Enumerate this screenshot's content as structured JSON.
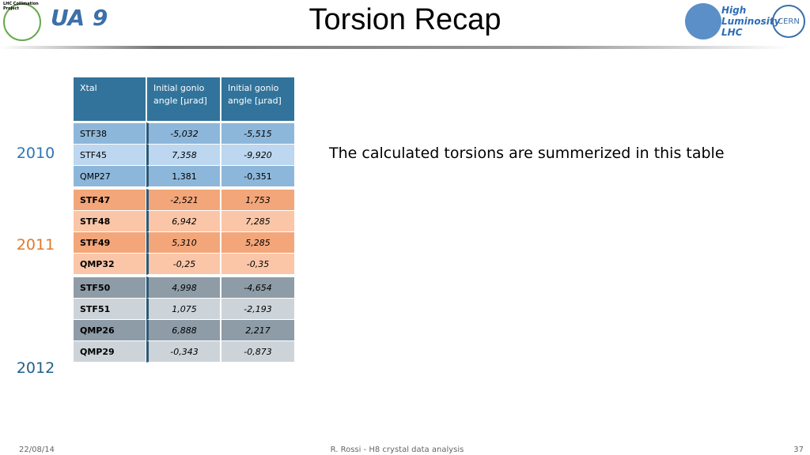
{
  "header": {
    "title": "Torsion Recap",
    "logos": {
      "collimation": "LHC Collimation Project",
      "ua9": "UA 9",
      "hilumi": "High Luminosity LHC",
      "cern": "CERN"
    }
  },
  "table": {
    "columns": [
      "Xtal",
      "Initial gonio angle [µrad]",
      "Initial gonio angle [µrad]"
    ],
    "groups": [
      {
        "year": "2010",
        "rows": [
          [
            "STF38",
            "-5,032",
            "-5,515"
          ],
          [
            "STF45",
            "7,358",
            "-9,920"
          ],
          [
            "QMP27",
            "1,381",
            "-0,351"
          ]
        ]
      },
      {
        "year": "2011",
        "rows": [
          [
            "STF47",
            "-2,521",
            "1,753"
          ],
          [
            "STF48",
            "6,942",
            "7,285"
          ],
          [
            "STF49",
            "5,310",
            "5,285"
          ],
          [
            "QMP32",
            "-0,25",
            "-0,35"
          ]
        ]
      },
      {
        "year": "2012",
        "rows": [
          [
            "STF50",
            "4,998",
            "-4,654"
          ],
          [
            "STF51",
            "1,075",
            "-2,193"
          ],
          [
            "QMP26",
            "6,888",
            "2,217"
          ],
          [
            "QMP29",
            "-0,343",
            "-0,873"
          ]
        ]
      }
    ]
  },
  "note": "The calculated torsions are summerized in this table",
  "footer": {
    "date": "22/08/14",
    "author": "R. Rossi - H8 crystal data analysis",
    "page": "37"
  }
}
